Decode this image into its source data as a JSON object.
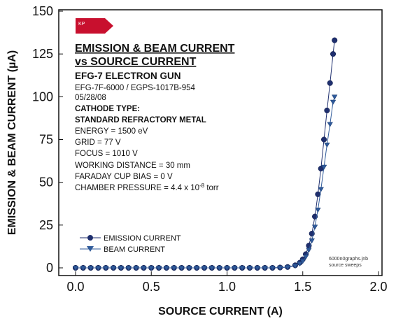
{
  "chart_data": {
    "type": "scatter",
    "xlabel": "SOURCE CURRENT (A)",
    "ylabel": "EMISSION & BEAM CURRENT (µA)",
    "xlim": [
      0.0,
      2.0
    ],
    "ylim": [
      0,
      150
    ],
    "x_ticks": [
      "0.0",
      "0.5",
      "1.0",
      "1.5",
      "2.0"
    ],
    "y_ticks": [
      "0",
      "25",
      "50",
      "75",
      "100",
      "125",
      "150"
    ],
    "grid": false,
    "legend_position": "bottom-left",
    "series": [
      {
        "name": "EMISSION CURRENT",
        "marker": "circle",
        "color": "#1f2f6e",
        "x": [
          0.0,
          0.05,
          0.1,
          0.15,
          0.2,
          0.25,
          0.3,
          0.35,
          0.4,
          0.45,
          0.5,
          0.55,
          0.6,
          0.65,
          0.7,
          0.75,
          0.8,
          0.85,
          0.9,
          0.95,
          1.0,
          1.05,
          1.1,
          1.15,
          1.2,
          1.25,
          1.3,
          1.35,
          1.4,
          1.45,
          1.48,
          1.5,
          1.52,
          1.54,
          1.56,
          1.58,
          1.6,
          1.62,
          1.64,
          1.66,
          1.68,
          1.7,
          1.71
        ],
        "y": [
          0,
          0,
          0,
          0,
          0,
          0,
          0,
          0,
          0,
          0,
          0,
          0,
          0,
          0,
          0,
          0,
          0,
          0,
          0,
          0,
          0,
          0,
          0,
          0,
          0,
          0,
          0,
          0.2,
          0.5,
          1.5,
          3,
          5,
          8,
          13,
          20,
          30,
          43,
          58,
          75,
          92,
          108,
          125,
          133
        ]
      },
      {
        "name": "BEAM CURRENT",
        "marker": "triangle-down",
        "color": "#2f5a9a",
        "x": [
          0.0,
          0.05,
          0.1,
          0.15,
          0.2,
          0.25,
          0.3,
          0.35,
          0.4,
          0.45,
          0.5,
          0.55,
          0.6,
          0.65,
          0.7,
          0.75,
          0.8,
          0.85,
          0.9,
          0.95,
          1.0,
          1.05,
          1.1,
          1.15,
          1.2,
          1.25,
          1.3,
          1.35,
          1.4,
          1.45,
          1.48,
          1.5,
          1.52,
          1.54,
          1.56,
          1.58,
          1.6,
          1.62,
          1.64,
          1.66,
          1.68,
          1.7,
          1.71
        ],
        "y": [
          0,
          0,
          0,
          0,
          0,
          0,
          0,
          0,
          0,
          0,
          0,
          0,
          0,
          0,
          0,
          0,
          0,
          0,
          0,
          0,
          0,
          0,
          0,
          0,
          0,
          0,
          0,
          0.1,
          0.4,
          1.2,
          2.5,
          4,
          6.5,
          10.5,
          16,
          24,
          34,
          46,
          59,
          72,
          84,
          97,
          100
        ]
      }
    ]
  },
  "annotation": {
    "logo": "KP",
    "title_line1": "EMISSION & BEAM CURRENT",
    "title_line2": "vs SOURCE CURRENT",
    "product": "EFG-7 ELECTRON GUN",
    "model": "EFG-7F-6000 / EGPS-1017B-954",
    "date": "05/28/08",
    "cathode_label": "CATHODE TYPE:",
    "cathode_value": "STANDARD REFRACTORY METAL",
    "energy": "ENERGY = 1500 eV",
    "grid": "GRID = 77 V",
    "focus": "FOCUS = 1010 V",
    "distance": "WORKING DISTANCE = 30 mm",
    "faraday": "FARADAY CUP BIAS = 0 V",
    "pressure_prefix": "CHAMBER PRESSURE = 4.4 x 10",
    "pressure_exp": "-8",
    "pressure_unit": " torr",
    "note_line1": "6000n0graphs.jnb",
    "note_line2": "source sweeps"
  }
}
